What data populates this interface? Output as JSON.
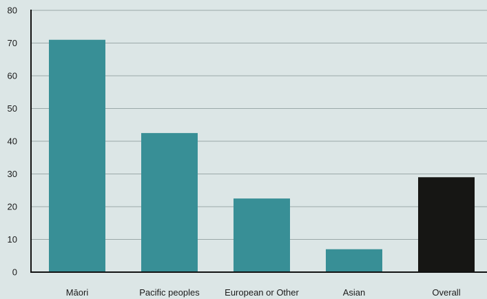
{
  "chart_data": {
    "type": "bar",
    "title": "",
    "xlabel": "",
    "ylabel": "",
    "categories": [
      "Māori",
      "Pacific peoples",
      "European or Other",
      "Asian",
      "Overall"
    ],
    "values": [
      71,
      42.5,
      22.5,
      7,
      29
    ],
    "bar_colors": [
      "#388f96",
      "#388f96",
      "#388f96",
      "#388f96",
      "#161614"
    ],
    "ylim": [
      0,
      80
    ],
    "yticks": [
      0,
      10,
      20,
      30,
      40,
      50,
      60,
      70,
      80
    ],
    "grid": true,
    "legend": "none"
  },
  "colors": {
    "background": "#dce6e6",
    "grid": "#9aa8a8",
    "axis": "#111111",
    "text": "#1a1a1a"
  }
}
